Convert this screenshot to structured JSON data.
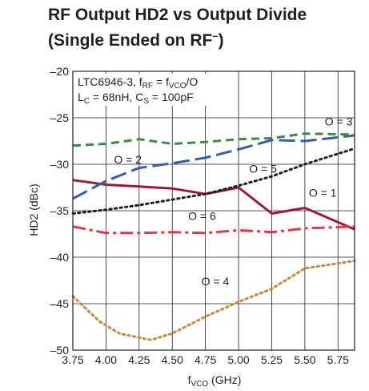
{
  "title": {
    "line1": "RF Output HD2 vs Output Divide",
    "line2_main": "(Single Ended on RF",
    "line2_sup": "–",
    "line2_end": ")"
  },
  "annotation": {
    "line1_pre": "LTC6946-3, f",
    "line1_sub1": "RF",
    "line1_mid": " = f",
    "line1_sub2": "VCO",
    "line1_post": "/O",
    "line2_a": "L",
    "line2_sub_a": "C",
    "line2_b": " = 68nH, C",
    "line2_sub_b": "S",
    "line2_c": " = 100pF"
  },
  "axes": {
    "ylabel": "HD2 (dBc)",
    "xlabel_main": "f",
    "xlabel_sub": "VCO",
    "xlabel_unit": " (GHz)"
  },
  "chart_data": {
    "type": "line",
    "xlim": [
      3.75,
      5.875
    ],
    "ylim": [
      -50,
      -20
    ],
    "xticks": [
      3.75,
      4.0,
      4.25,
      4.5,
      4.75,
      5.0,
      5.25,
      5.5,
      5.75
    ],
    "xtick_labels": [
      "3.75",
      "4.00",
      "4.25",
      "4.50",
      "4.75",
      "5.00",
      "5.25",
      "5.50",
      "5.75"
    ],
    "yticks": [
      -50,
      -45,
      -40,
      -35,
      -30,
      -25,
      -20
    ],
    "ytick_labels": [
      "–50",
      "–45",
      "–40",
      "–35",
      "–30",
      "–25",
      "–20"
    ],
    "grid": true,
    "series": [
      {
        "name": "O = 1",
        "color": "#9b1b3a",
        "dash": "solid",
        "x": [
          3.75,
          4.0,
          4.25,
          4.5,
          4.75,
          5.0,
          5.25,
          5.5,
          5.875
        ],
        "y": [
          -31.7,
          -32.2,
          -32.4,
          -32.6,
          -33.2,
          -32.5,
          -35.3,
          -34.7,
          -37.0
        ],
        "label_text": "O = 1",
        "label_at": [
          5.53,
          -33.5
        ]
      },
      {
        "name": "O = 2",
        "color": "#3b5ba5",
        "dash": "longdash",
        "x": [
          3.75,
          4.0,
          4.25,
          4.5,
          4.75,
          5.0,
          5.25,
          5.5,
          5.875
        ],
        "y": [
          -33.7,
          -31.8,
          -30.4,
          -29.9,
          -29.3,
          -28.4,
          -27.4,
          -27.5,
          -26.9
        ],
        "label_text": "O = 2",
        "label_at": [
          4.06,
          -29.9
        ]
      },
      {
        "name": "O = 3",
        "color": "#3a8a45",
        "dash": "dash",
        "x": [
          3.75,
          4.0,
          4.25,
          4.5,
          4.75,
          5.0,
          5.25,
          5.5,
          5.875
        ],
        "y": [
          -28.0,
          -27.8,
          -27.3,
          -27.8,
          -27.6,
          -27.3,
          -27.2,
          -26.7,
          -26.8
        ],
        "label_text": "O = 3",
        "label_at": [
          5.65,
          -25.8
        ]
      },
      {
        "name": "O = 4",
        "color": "#c98a3c",
        "dash": "dot",
        "x": [
          3.75,
          3.95,
          4.1,
          4.3,
          4.34,
          4.5,
          4.75,
          5.0,
          5.25,
          5.5,
          5.875
        ],
        "y": [
          -44.2,
          -46.9,
          -48.2,
          -48.8,
          -48.9,
          -48.2,
          -46.4,
          -44.8,
          -43.4,
          -41.2,
          -40.4
        ],
        "label_text": "O = 4",
        "label_at": [
          4.72,
          -43.0
        ]
      },
      {
        "name": "O = 5",
        "color": "#231f20",
        "dash": "dot",
        "x": [
          3.75,
          4.0,
          4.25,
          4.5,
          4.75,
          5.0,
          5.25,
          5.5,
          5.875
        ],
        "y": [
          -35.3,
          -34.9,
          -34.4,
          -33.8,
          -33.2,
          -32.3,
          -31.3,
          -30.0,
          -28.3
        ],
        "label_text": "O = 5",
        "label_at": [
          5.08,
          -30.9
        ]
      },
      {
        "name": "O = 6",
        "color": "#e23744",
        "dash": "dashdot",
        "x": [
          3.75,
          4.0,
          4.25,
          4.5,
          4.75,
          5.0,
          5.25,
          5.5,
          5.875
        ],
        "y": [
          -36.7,
          -37.4,
          -37.4,
          -37.3,
          -37.4,
          -37.1,
          -37.3,
          -36.9,
          -36.7
        ],
        "label_text": "O = 6",
        "label_at": [
          4.62,
          -36.0
        ]
      }
    ]
  }
}
